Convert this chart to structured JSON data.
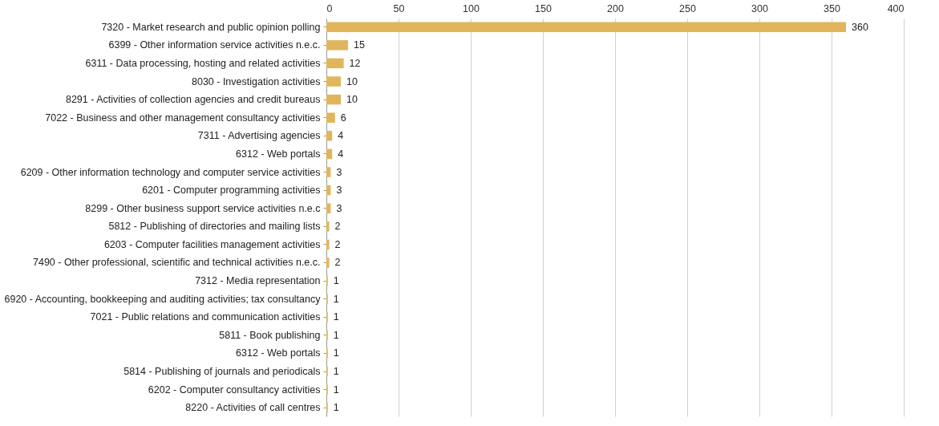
{
  "chart_data": {
    "type": "bar",
    "orientation": "horizontal",
    "categories": [
      "7320 - Market research and public opinion polling",
      "6399 - Other information service activities n.e.c.",
      "6311 - Data processing, hosting and related activities",
      "8030 - Investigation activities",
      "8291 - Activities of collection agencies and credit bureaus",
      "7022 - Business and other management consultancy activities",
      "7311 - Advertising agencies",
      "6312 - Web portals",
      "6209 - Other information technology and computer service activities",
      "6201 - Computer programming activities",
      "8299 - Other business support service activities n.e.c",
      "5812 - Publishing of directories and mailing lists",
      "6203 - Computer facilities management activities",
      "7490 - Other professional, scientific and technical activities n.e.c.",
      "7312 - Media representation",
      "6920 - Accounting, bookkeeping and auditing activities; tax consultancy",
      "7021 - Public relations and communication activities",
      "5811 - Book publishing",
      "6312 - Web portals",
      "5814 - Publishing of journals and periodicals",
      "6202 - Computer consultancy activities",
      "8220 - Activities of call centres"
    ],
    "values": [
      360,
      15,
      12,
      10,
      10,
      6,
      4,
      4,
      3,
      3,
      3,
      2,
      2,
      2,
      1,
      1,
      1,
      1,
      1,
      1,
      1,
      1
    ],
    "color": "#e0b55c",
    "xlim": [
      0,
      400
    ],
    "xticks": [
      0,
      50,
      100,
      150,
      200,
      250,
      300,
      350,
      400
    ],
    "grid": "x",
    "data_labels": true
  }
}
